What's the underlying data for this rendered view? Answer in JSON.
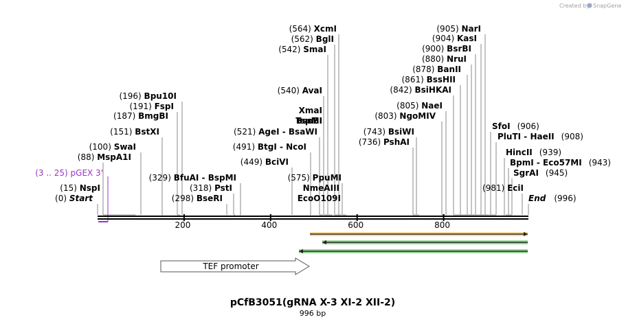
{
  "watermark": {
    "text": "Created by",
    "brand": "SnapGene"
  },
  "map": {
    "length": 996,
    "title": "pCfB3051(gRNA X-3 XI-2 XII-2)",
    "subtitle": "996 bp",
    "ticks": [
      "200",
      "400",
      "600",
      "800"
    ],
    "tick_values": [
      200,
      400,
      600,
      800
    ]
  },
  "start_label": {
    "pos": "(0)",
    "name": "Start"
  },
  "end_label": {
    "name": "End",
    "pos": "(996)"
  },
  "primer": {
    "label": "(3 .. 25)  pGEX 3'",
    "start": 3,
    "end": 25,
    "color": "#9b30c8"
  },
  "sites": [
    {
      "pos": "(15)",
      "name": "NspI",
      "bp": 15
    },
    {
      "pos": "(88)",
      "name": "MspA1I",
      "bp": 88
    },
    {
      "pos": "(100)",
      "name": "SwaI",
      "bp": 100
    },
    {
      "pos": "(151)",
      "name": "BstXI",
      "bp": 151
    },
    {
      "pos": "(187)",
      "name": "BmgBI",
      "bp": 187
    },
    {
      "pos": "(191)",
      "name": "FspI",
      "bp": 191
    },
    {
      "pos": "(196)",
      "name": "Bpu10I",
      "bp": 196
    },
    {
      "pos": "(329)",
      "name": "BfuAI  - BspMI",
      "bp": 329
    },
    {
      "pos": "(318)",
      "name": "PstI",
      "bp": 318
    },
    {
      "pos": "(298)",
      "name": "BseRI",
      "bp": 298
    },
    {
      "pos": "(449)",
      "name": "BciVI",
      "bp": 449
    },
    {
      "pos": "(491)",
      "name": "BtgI  - NcoI",
      "bp": 491
    },
    {
      "pos": "(521)",
      "name": "AgeI  - BsaWI",
      "bp": 521
    },
    {
      "pos": "(540)",
      "name": "AvaI",
      "bp": 540
    },
    {
      "pos": "",
      "name": "XmaI",
      "bp": 540
    },
    {
      "pos": "",
      "name": "BsoBI",
      "bp": 540
    },
    {
      "pos": "",
      "name": "TspMI",
      "bp": 540
    },
    {
      "pos": "(542)",
      "name": "SmaI",
      "bp": 542
    },
    {
      "pos": "(562)",
      "name": "BglI",
      "bp": 562
    },
    {
      "pos": "(564)",
      "name": "XcmI",
      "bp": 564
    },
    {
      "pos": "(575)",
      "name": "PpuMI",
      "bp": 575
    },
    {
      "pos": "",
      "name": "NmeAIII",
      "bp": 575
    },
    {
      "pos": "",
      "name": "EcoO109I",
      "bp": 575
    },
    {
      "pos": "(736)",
      "name": "PshAI",
      "bp": 736
    },
    {
      "pos": "(743)",
      "name": "BsiWI",
      "bp": 743
    },
    {
      "pos": "(803)",
      "name": "NgoMIV",
      "bp": 803
    },
    {
      "pos": "(805)",
      "name": "NaeI",
      "bp": 805
    },
    {
      "pos": "(842)",
      "name": "BsiHKAI",
      "bp": 842
    },
    {
      "pos": "(861)",
      "name": "BssHII",
      "bp": 861
    },
    {
      "pos": "(878)",
      "name": "BanII",
      "bp": 878
    },
    {
      "pos": "(880)",
      "name": "NruI",
      "bp": 880
    },
    {
      "pos": "(900)",
      "name": "BsrBI",
      "bp": 900
    },
    {
      "pos": "(904)",
      "name": "KasI",
      "bp": 904
    },
    {
      "pos": "(905)",
      "name": "NarI",
      "bp": 905
    },
    {
      "pos": "(906)",
      "name": "SfoI",
      "bp": 906
    },
    {
      "pos": "(908)",
      "name": "PluTI  - HaeII",
      "bp": 908
    },
    {
      "pos": "(939)",
      "name": "HincII",
      "bp": 939
    },
    {
      "pos": "(943)",
      "name": "BpmI  - Eco57MI",
      "bp": 943
    },
    {
      "pos": "(945)",
      "name": "SgrAI",
      "bp": 945
    },
    {
      "pos": "(981)",
      "name": "EciI",
      "bp": 981
    }
  ],
  "features": [
    {
      "label": "TEF promoter",
      "start": 149,
      "end": 491,
      "direction": "forward",
      "color": "#ffffff"
    },
    {
      "start": 491,
      "end": 996,
      "direction": "forward",
      "color": "#f5a623"
    },
    {
      "start": 525,
      "end": 996,
      "direction": "reverse",
      "color": "#22aa22"
    },
    {
      "start": 467,
      "end": 996,
      "direction": "reverse",
      "color": "#22aa22"
    }
  ]
}
